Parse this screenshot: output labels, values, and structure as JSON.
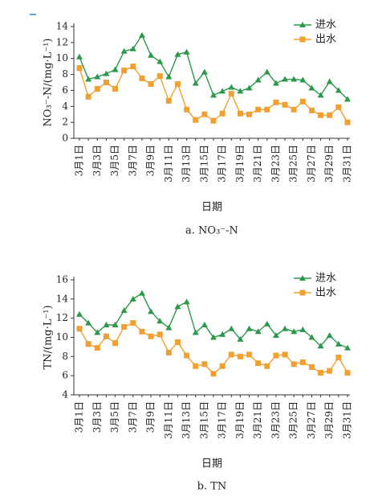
{
  "chart_data": [
    {
      "type": "line",
      "caption": "a. NO₃⁻-N",
      "y_label": "NO₃⁻-N/(mg·L⁻¹)",
      "x_label": "日期",
      "categories": [
        "3月1日",
        null,
        "3月3日",
        null,
        "3月5日",
        null,
        "3月7日",
        null,
        "3月9日",
        null,
        "3月11日",
        null,
        "3月13日",
        null,
        "3月15日",
        null,
        "3月17日",
        null,
        "3月19日",
        null,
        "3月21日",
        null,
        "3月23日",
        null,
        "3月25日",
        null,
        "3月27日",
        null,
        "3月29日",
        null,
        "3月31日"
      ],
      "series": [
        {
          "name": "进水",
          "color": "#2a9a4a",
          "marker": "triangle",
          "values": [
            10.2,
            7.4,
            7.7,
            8.1,
            8.6,
            10.9,
            11.2,
            12.9,
            10.4,
            9.6,
            7.7,
            10.5,
            10.8,
            6.9,
            8.3,
            5.4,
            5.9,
            6.4,
            5.9,
            6.3,
            7.3,
            8.3,
            6.9,
            7.4,
            7.4,
            7.3,
            6.3,
            5.4,
            7.1,
            6.0,
            4.9
          ]
        },
        {
          "name": "出水",
          "color": "#f0a030",
          "marker": "square",
          "values": [
            8.8,
            5.2,
            6.2,
            7.0,
            6.2,
            8.5,
            9.0,
            7.5,
            6.8,
            7.8,
            4.7,
            6.8,
            3.6,
            2.3,
            3.0,
            2.2,
            3.1,
            5.6,
            3.1,
            3.0,
            3.6,
            3.6,
            4.5,
            4.2,
            3.6,
            4.6,
            3.5,
            2.9,
            2.9,
            3.9,
            2.0
          ]
        }
      ],
      "ylim": [
        0,
        14
      ],
      "yticks": [
        0,
        2,
        4,
        6,
        8,
        10,
        12,
        14
      ],
      "legend": "upper right"
    },
    {
      "type": "line",
      "caption": "b. TN",
      "y_label": "TN/(mg·L⁻¹)",
      "x_label": "日期",
      "categories": [
        "3月1日",
        null,
        "3月3日",
        null,
        "3月5日",
        null,
        "3月7日",
        null,
        "3月9日",
        null,
        "3月11日",
        null,
        "3月13日",
        null,
        "3月15日",
        null,
        "3月17日",
        null,
        "3月19日",
        null,
        "3月21日",
        null,
        "3月23日",
        null,
        "3月25日",
        null,
        "3月27日",
        null,
        "3月29日",
        null,
        "3月31日"
      ],
      "series": [
        {
          "name": "进水",
          "color": "#2a9a4a",
          "marker": "triangle",
          "values": [
            12.4,
            11.5,
            10.5,
            11.3,
            11.3,
            12.8,
            14.0,
            14.6,
            12.7,
            11.7,
            11.0,
            13.2,
            13.7,
            10.5,
            11.3,
            10.0,
            10.3,
            10.9,
            9.8,
            10.9,
            10.6,
            11.4,
            10.2,
            10.9,
            10.6,
            10.8,
            10.0,
            9.1,
            10.2,
            9.3,
            8.9
          ]
        },
        {
          "name": "出水",
          "color": "#f0a030",
          "marker": "square",
          "values": [
            10.9,
            9.3,
            8.9,
            10.1,
            9.4,
            11.1,
            11.5,
            10.6,
            10.1,
            10.3,
            8.4,
            9.5,
            8.1,
            7.0,
            7.2,
            6.2,
            7.0,
            8.2,
            8.0,
            8.2,
            7.3,
            7.0,
            8.1,
            8.2,
            7.2,
            7.4,
            6.9,
            6.3,
            6.5,
            7.9,
            6.3
          ]
        }
      ],
      "ylim": [
        4,
        16
      ],
      "yticks": [
        4,
        6,
        8,
        10,
        12,
        14,
        16
      ],
      "legend": "upper right"
    }
  ]
}
